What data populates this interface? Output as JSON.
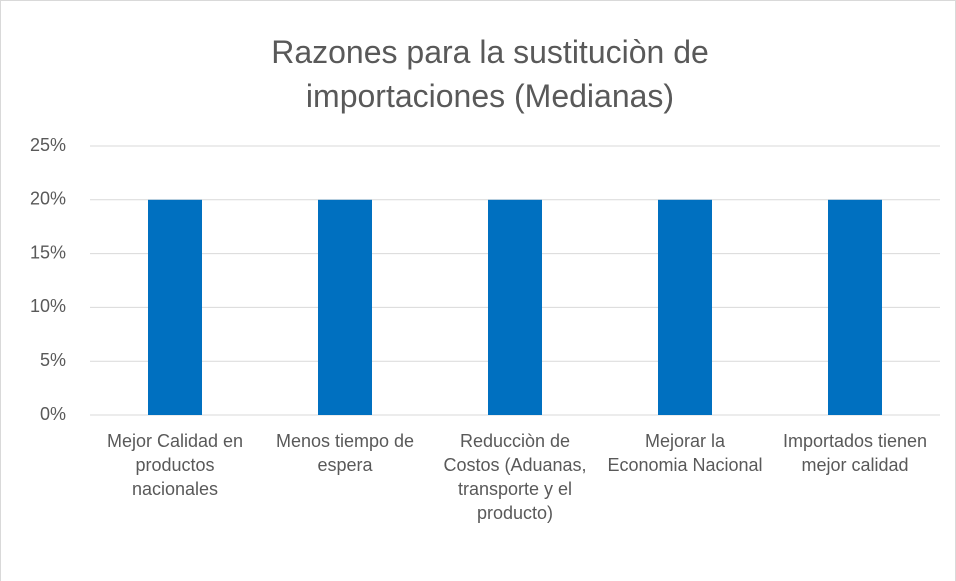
{
  "chart_data": {
    "type": "bar",
    "title": "Razones para la sustituciòn de importaciones (Medianas)",
    "categories": [
      "Mejor Calidad en productos nacionales",
      "Menos tiempo de espera",
      "Reducciòn de Costos (Aduanas, transporte y el producto)",
      "Mejorar la Economia Nacional",
      "Importados tienen mejor calidad"
    ],
    "values": [
      20,
      20,
      20,
      20,
      20
    ],
    "color": "#0070c0",
    "ylim": [
      0,
      25
    ],
    "yticks": [
      {
        "value": 0,
        "label": "0%"
      },
      {
        "value": 5,
        "label": "5%"
      },
      {
        "value": 10,
        "label": "10%"
      },
      {
        "value": 15,
        "label": "15%"
      },
      {
        "value": 20,
        "label": "20%"
      },
      {
        "value": 25,
        "label": "25%"
      }
    ],
    "grid": true
  }
}
